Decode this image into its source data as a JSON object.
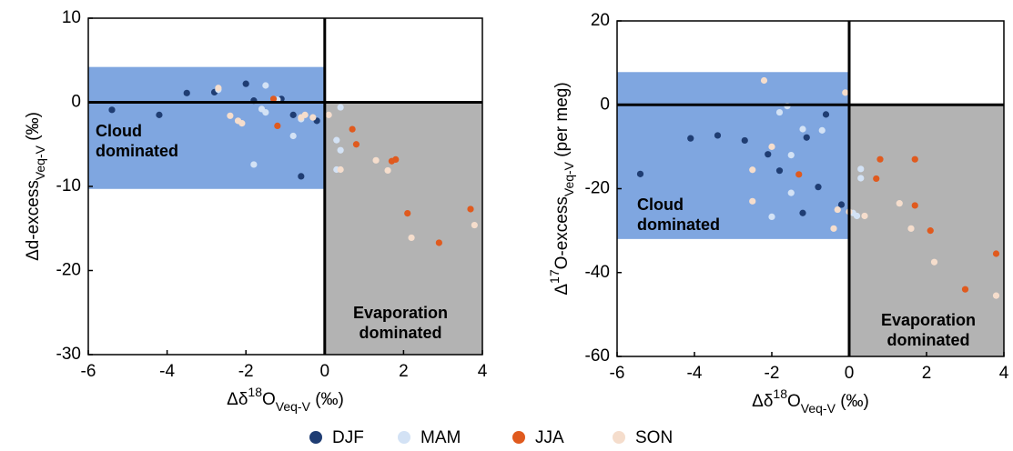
{
  "chart_data": [
    {
      "type": "scatter",
      "xlabel": [
        {
          "text": "Δδ"
        },
        {
          "text": "18",
          "pos": "sup"
        },
        {
          "text": "O"
        },
        {
          "text": "Veq-V",
          "pos": "sub"
        },
        {
          "text": " (‰)"
        }
      ],
      "ylabel": [
        {
          "text": "Δd-excess"
        },
        {
          "text": "Veq-V",
          "pos": "sub"
        },
        {
          "text": " (‰)"
        }
      ],
      "xlim": [
        -6,
        4
      ],
      "ylim": [
        -30,
        10
      ],
      "xticks": [
        -6,
        -4,
        -2,
        0,
        2,
        4
      ],
      "yticks": [
        10,
        0,
        -10,
        -20,
        -30
      ],
      "vline": 0,
      "hline": 0,
      "regions": [
        {
          "xlim": [
            -6,
            0
          ],
          "ylim": [
            -10.3,
            4.2
          ],
          "color": "#7fa6e0",
          "label": [
            "Cloud",
            "dominated"
          ],
          "label_color": "#1f3d73"
        },
        {
          "xlim": [
            0,
            4
          ],
          "ylim": [
            -30,
            0
          ],
          "color": "#b3b3b3",
          "label": [
            "Evaporation",
            "dominated"
          ],
          "label_color": "#444444"
        }
      ],
      "series": [
        {
          "name": "DJF",
          "color": "#1f3d73",
          "x": [
            -5.4,
            -4.2,
            -3.5,
            -2.8,
            -2.0,
            -1.8,
            -1.1,
            -0.8,
            -0.6,
            -0.2
          ],
          "values": [
            -0.9,
            -1.5,
            1.1,
            1.2,
            2.2,
            0.2,
            0.4,
            -1.5,
            -8.8,
            -2.2
          ]
        },
        {
          "name": "MAM",
          "color": "#d3e2f5",
          "x": [
            -2.7,
            -1.8,
            -1.5,
            -1.6,
            -1.5,
            -1.2,
            -0.8,
            -0.6,
            0.3,
            0.4,
            0.3,
            0.4
          ],
          "values": [
            1.5,
            -7.4,
            2.0,
            -0.8,
            -1.2,
            0.3,
            -4.0,
            -2.0,
            -4.5,
            -5.7,
            -8.0,
            -0.6
          ]
        },
        {
          "name": "JJA",
          "color": "#e05a1e",
          "x": [
            -1.3,
            -1.2,
            0.7,
            0.8,
            1.7,
            1.8,
            2.1,
            2.9,
            3.7
          ],
          "values": [
            0.4,
            -2.8,
            -3.2,
            -5.0,
            -7.0,
            -6.8,
            -13.2,
            -16.7,
            -12.7
          ]
        },
        {
          "name": "SON",
          "color": "#f5ddcc",
          "x": [
            -2.7,
            -2.4,
            -2.2,
            -2.1,
            -0.6,
            -0.5,
            -0.3,
            0.1,
            0.4,
            1.3,
            1.6,
            2.2,
            3.8
          ],
          "values": [
            1.7,
            -1.6,
            -2.2,
            -2.5,
            -1.8,
            -1.5,
            -1.8,
            -1.5,
            -8.0,
            -6.9,
            -8.1,
            -16.1,
            -14.6
          ]
        }
      ]
    },
    {
      "type": "scatter",
      "xlabel": [
        {
          "text": "Δδ"
        },
        {
          "text": "18",
          "pos": "sup"
        },
        {
          "text": "O"
        },
        {
          "text": "Veq-V",
          "pos": "sub"
        },
        {
          "text": " (‰)"
        }
      ],
      "ylabel": [
        {
          "text": "Δ"
        },
        {
          "text": "17",
          "pos": "sup"
        },
        {
          "text": "O-excess"
        },
        {
          "text": "Veq-V",
          "pos": "sub"
        },
        {
          "text": " (per meg)"
        }
      ],
      "xlim": [
        -6,
        4
      ],
      "ylim": [
        -60,
        20
      ],
      "xticks": [
        -6,
        -4,
        -2,
        0,
        2,
        4
      ],
      "yticks": [
        20,
        0,
        -20,
        -40,
        -60
      ],
      "vline": 0,
      "hline": 0,
      "regions": [
        {
          "xlim": [
            -6,
            0
          ],
          "ylim": [
            -32,
            7.8
          ],
          "color": "#7fa6e0",
          "label": [
            "Cloud",
            "dominated"
          ],
          "label_color": "#1f3d73"
        },
        {
          "xlim": [
            0,
            4
          ],
          "ylim": [
            -60,
            0
          ],
          "color": "#b3b3b3",
          "label": [
            "Evaporation",
            "dominated"
          ],
          "label_color": "#444444"
        }
      ],
      "series": [
        {
          "color": "#1f3d73",
          "x": [
            -5.4,
            -4.1,
            -3.4,
            -2.7,
            -2.1,
            -1.8,
            -1.2,
            -1.1,
            -0.8,
            -0.6,
            -0.2
          ],
          "values": [
            -16.5,
            -8,
            -7.3,
            -8.5,
            -11.8,
            -15.7,
            -25.8,
            -7.8,
            -19.6,
            -2.3,
            -23.8
          ]
        },
        {
          "color": "#d3e2f5",
          "x": [
            -2.0,
            -1.8,
            -1.6,
            -1.5,
            -1.5,
            -1.2,
            -0.7,
            0.2,
            0.3,
            0.3,
            0.1
          ],
          "values": [
            -26.7,
            -1.8,
            -0.3,
            -12,
            -21,
            -5.8,
            -6.1,
            -26.5,
            -15.3,
            -17.5,
            -25.8
          ]
        },
        {
          "color": "#e05a1e",
          "x": [
            -1.3,
            0.7,
            0.8,
            1.7,
            1.7,
            2.1,
            3.0,
            3.8
          ],
          "values": [
            -16.6,
            -17.6,
            -13,
            -13,
            -24,
            -30,
            -44,
            -35.5
          ]
        },
        {
          "color": "#f5ddcc",
          "x": [
            -2.2,
            -2.5,
            -2.5,
            -2.0,
            -0.4,
            -0.3,
            -0.1,
            0.0,
            0.4,
            1.3,
            1.6,
            2.2,
            3.8
          ],
          "values": [
            5.8,
            -15.5,
            -23,
            -10,
            -29.5,
            -25,
            2.9,
            -25.5,
            -26.5,
            -23.5,
            -29.5,
            -37.5,
            -45.5
          ]
        }
      ]
    }
  ]
}
